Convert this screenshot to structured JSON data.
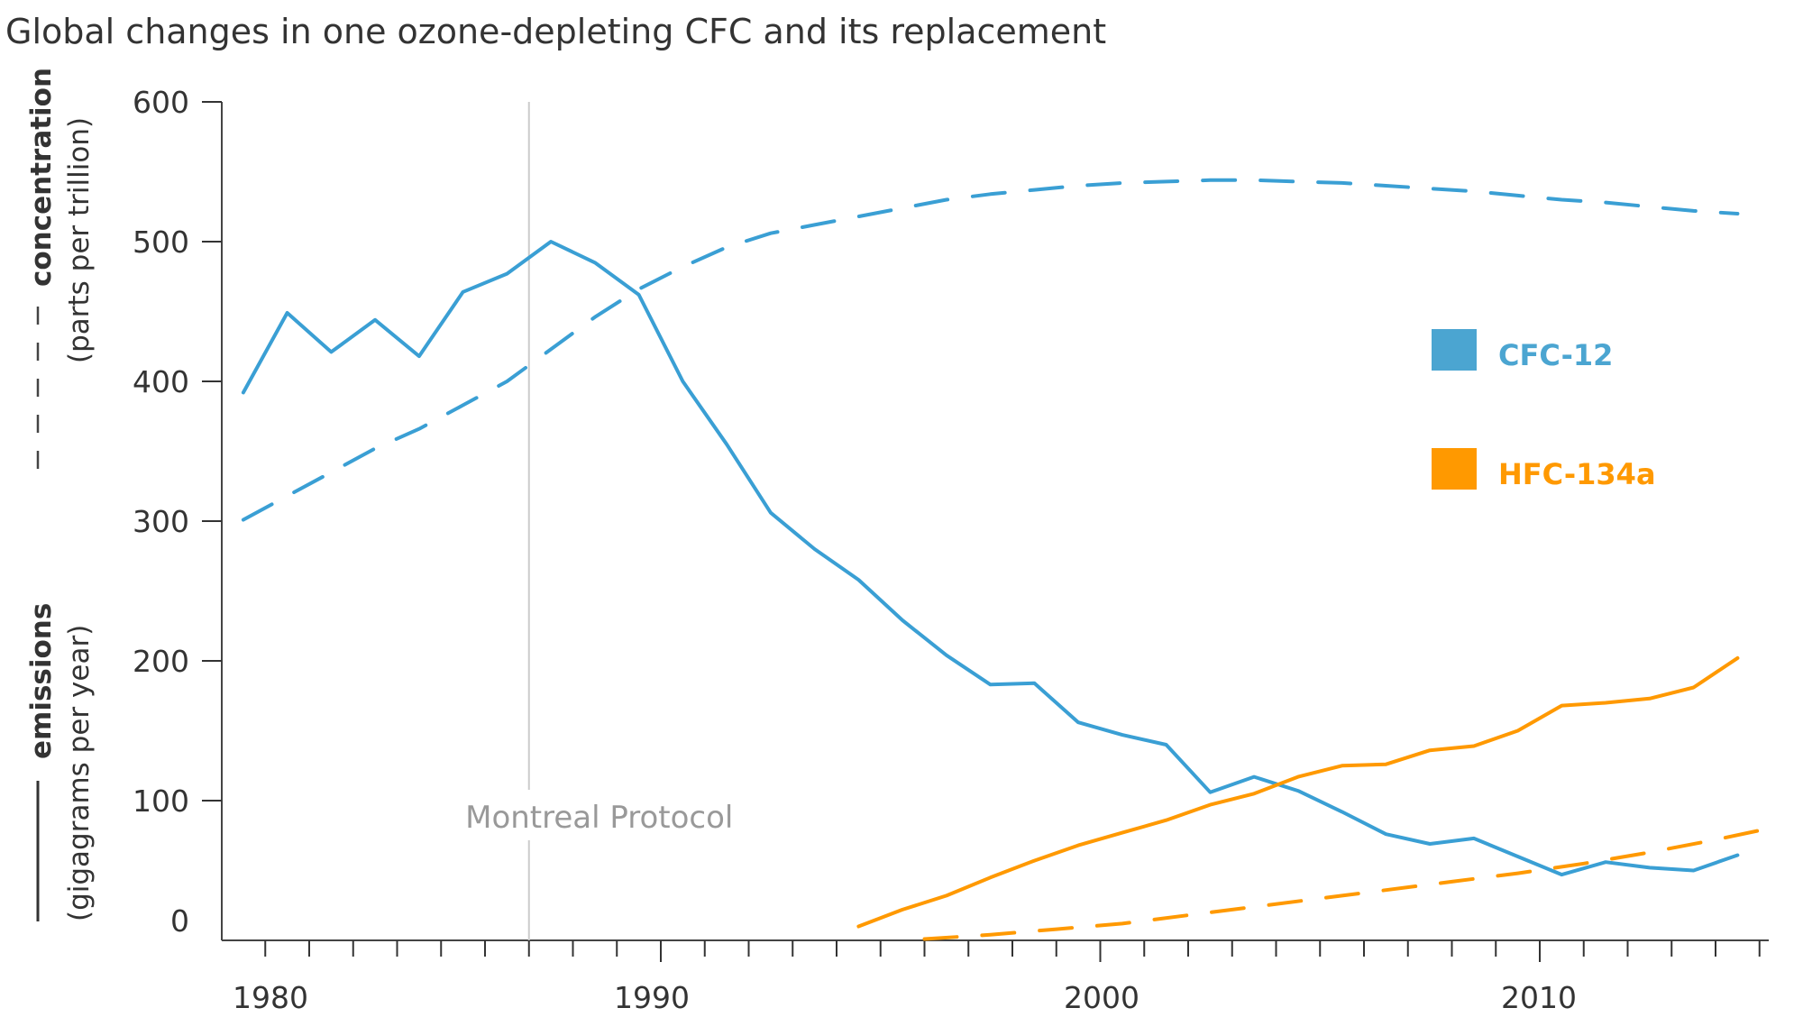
{
  "chart_data": {
    "type": "line",
    "title": "Global changes in one ozone-depleting CFC and its replacement",
    "xlabel": "",
    "ylabel_concentration": {
      "bold": "concentration",
      "unit": "(parts per trillion)",
      "line_style": "dashed"
    },
    "ylabel_emissions": {
      "bold": "emissions",
      "unit": "(gigagrams per year)",
      "line_style": "solid"
    },
    "xlim": [
      1980,
      2015.2
    ],
    "ylim": [
      0,
      600
    ],
    "x_ticks": {
      "major": [
        1980,
        1990,
        2000,
        2010
      ],
      "major_labels": [
        "1980",
        "1990",
        "2000",
        "2010"
      ],
      "minor_every": 1
    },
    "y_ticks": [
      0,
      100,
      200,
      300,
      400,
      500,
      600
    ],
    "y_tick_labels": [
      "0",
      "100",
      "200",
      "300",
      "400",
      "500",
      "600"
    ],
    "grid": false,
    "legend": {
      "placement": "right",
      "entries": [
        {
          "label": "CFC-12",
          "color": "#4BA5D1"
        },
        {
          "label": "HFC-134a",
          "color": "#FF9900"
        }
      ]
    },
    "annotations": [
      {
        "text": "Montreal Protocol",
        "x": 1987,
        "type": "vertical-line",
        "color": "#CCCCCC",
        "text_color": "#999999"
      }
    ],
    "series": [
      {
        "name": "CFC-12 emissions",
        "compound": "CFC-12",
        "measure": "emissions (Gg/yr)",
        "style": "solid",
        "color": "#3A9FD4",
        "x": [
          1980.5,
          1981.5,
          1982.5,
          1983.5,
          1984.5,
          1985.5,
          1986.5,
          1987.5,
          1988.5,
          1989.5,
          1990.5,
          1991.5,
          1992.5,
          1993.5,
          1994.5,
          1995.5,
          1996.5,
          1997.5,
          1998.5,
          1999.5,
          2000.5,
          2001.5,
          2002.5,
          2003.5,
          2004.5,
          2005.5,
          2006.5,
          2007.5,
          2008.5,
          2009.5,
          2010.5,
          2011.5,
          2012.5,
          2013.5,
          2014.5
        ],
        "values": [
          392,
          449,
          421,
          444,
          418,
          464,
          477,
          500,
          485,
          462,
          400,
          355,
          306,
          280,
          258,
          229,
          204,
          183,
          184,
          156,
          147,
          140,
          106,
          117,
          107,
          92,
          76,
          69,
          73,
          60,
          47,
          56,
          52,
          50,
          61
        ]
      },
      {
        "name": "CFC-12 concentration",
        "compound": "CFC-12",
        "measure": "concentration (ppt)",
        "style": "dashed",
        "color": "#3A9FD4",
        "x": [
          1980.5,
          1981.5,
          1982.5,
          1983.5,
          1984.5,
          1985.5,
          1986.5,
          1987.5,
          1988.5,
          1989.5,
          1990.5,
          1991.5,
          1992.5,
          1993.5,
          1994.5,
          1995.5,
          1996.5,
          1997.5,
          1998.5,
          1999.5,
          2000.5,
          2001.5,
          2002.5,
          2003.5,
          2004.5,
          2005.5,
          2006.5,
          2007.5,
          2008.5,
          2009.5,
          2010.5,
          2011.5,
          2012.5,
          2013.5,
          2014.5
        ],
        "values": [
          301,
          318,
          335,
          352,
          366,
          383,
          400,
          423,
          446,
          466,
          482,
          496,
          506,
          512,
          518,
          524,
          530,
          534,
          537,
          540,
          542,
          543,
          544,
          544,
          543,
          542,
          540,
          538,
          536,
          533,
          530,
          528,
          525,
          522,
          520
        ]
      },
      {
        "name": "HFC-134a emissions",
        "compound": "HFC-134a",
        "measure": "emissions (Gg/yr)",
        "style": "solid",
        "color": "#FF9900",
        "x": [
          1994.5,
          1995.5,
          1996.5,
          1997.5,
          1998.5,
          1999.5,
          2000.5,
          2001.5,
          2002.5,
          2003.5,
          2004.5,
          2005.5,
          2006.5,
          2007.5,
          2008.5,
          2009.5,
          2010.5,
          2011.5,
          2012.5,
          2013.5,
          2014.5
        ],
        "values": [
          10,
          22,
          32,
          45,
          57,
          68,
          77,
          86,
          97,
          105,
          117,
          125,
          126,
          136,
          139,
          150,
          168,
          170,
          173,
          181,
          202
        ]
      },
      {
        "name": "HFC-134a concentration",
        "compound": "HFC-134a",
        "measure": "concentration (ppt)",
        "style": "dashed",
        "color": "#FF9900",
        "x": [
          1996.0,
          1997.5,
          1999.0,
          2000.5,
          2002.0,
          2003.5,
          2005.0,
          2006.5,
          2008.0,
          2009.5,
          2011.0,
          2012.5,
          2014.0,
          2015.2
        ],
        "values": [
          1,
          4,
          8,
          12,
          18,
          24,
          30,
          36,
          42,
          48,
          55,
          63,
          72,
          80
        ]
      }
    ]
  }
}
